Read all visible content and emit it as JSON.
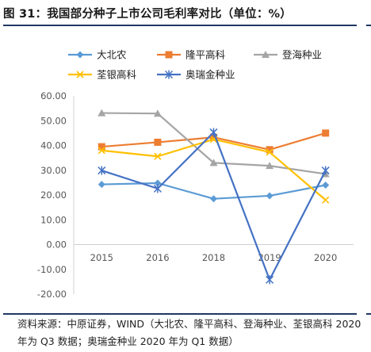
{
  "title": "图 31：我国部分种子上市公司毛利率对比（单位：%）",
  "source": "资料来源：中原证券，WIND（大北农、隆平高科、登海种业、荃银高科 2020 年为 Q3 数据；奥瑞金种业 2020 年为 Q1 数据）",
  "chart_data": {
    "type": "line",
    "categories": [
      "2015",
      "2016",
      "2018",
      "2019",
      "2020"
    ],
    "ylim": [
      -20,
      60
    ],
    "yticks": [
      "60.00",
      "50.00",
      "40.00",
      "30.00",
      "20.00",
      "10.00",
      "0.00",
      "-10.00",
      "-20.00"
    ],
    "grid": false,
    "legend_position": "top",
    "series": [
      {
        "name": "大北农",
        "color": "#5b9bd5",
        "marker": "diamond",
        "values": [
          24.3,
          24.8,
          18.5,
          19.7,
          24.0
        ]
      },
      {
        "name": "隆平高科",
        "color": "#ed7d31",
        "marker": "square",
        "values": [
          39.5,
          41.3,
          43.3,
          38.3,
          45.0
        ]
      },
      {
        "name": "登海种业",
        "color": "#a5a5a5",
        "marker": "triangle",
        "values": [
          53.1,
          52.9,
          33.0,
          31.8,
          28.5
        ]
      },
      {
        "name": "荃银高科",
        "color": "#ffc000",
        "marker": "x",
        "values": [
          38.0,
          35.6,
          42.5,
          37.3,
          18.0
        ]
      },
      {
        "name": "奥瑞金种业",
        "color": "#4472c4",
        "marker": "star",
        "values": [
          29.9,
          22.6,
          45.3,
          -14.2,
          29.9
        ]
      }
    ]
  }
}
